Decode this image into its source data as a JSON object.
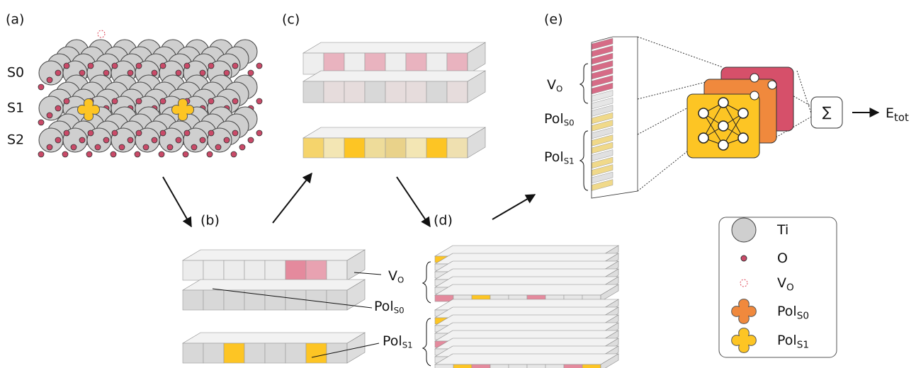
{
  "panel_labels": [
    "(a)",
    "(b)",
    "(c)",
    "(d)",
    "(e)"
  ],
  "layer_labels": [
    "S0",
    "S1",
    "S2"
  ],
  "panel_b_labels": [
    {
      "main": "V",
      "sub": "O"
    },
    {
      "main": "Pol",
      "sub": "S0"
    },
    {
      "main": "Pol",
      "sub": "S1"
    }
  ],
  "panel_e_labels": [
    {
      "main": "V",
      "sub": "O"
    },
    {
      "main": "Pol",
      "sub": "S0"
    },
    {
      "main": "Pol",
      "sub": "S1"
    }
  ],
  "sum_symbol": "∑",
  "output": {
    "main": "E",
    "sub": "tot"
  },
  "legend": [
    {
      "main": "Ti"
    },
    {
      "main": "O"
    },
    {
      "main": "V",
      "sub": "O"
    },
    {
      "main": "Pol",
      "sub": "S0"
    },
    {
      "main": "Pol",
      "sub": "S1"
    }
  ]
}
